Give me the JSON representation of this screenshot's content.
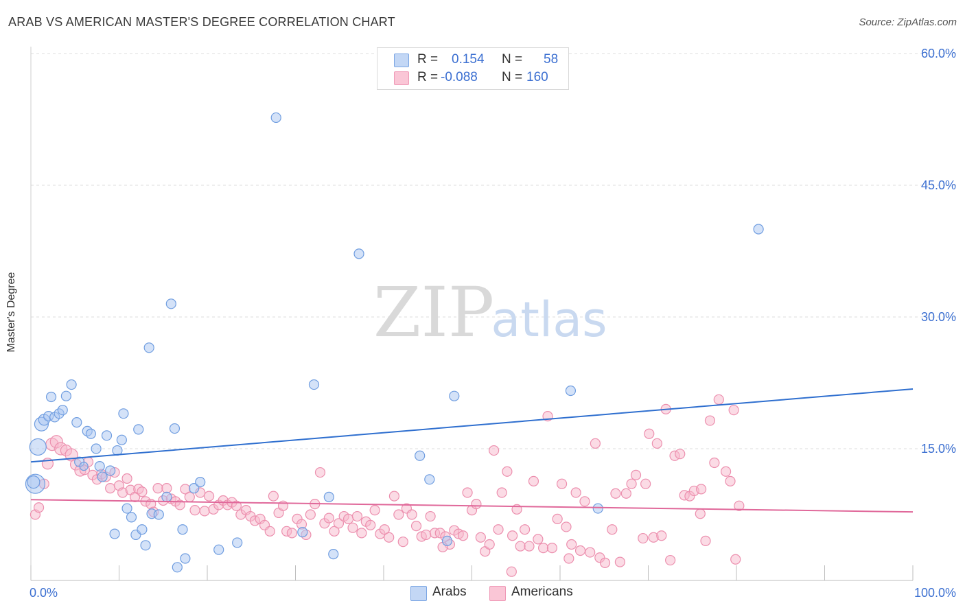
{
  "title": "ARAB VS AMERICAN MASTER'S DEGREE CORRELATION CHART",
  "source": "Source: ZipAtlas.com",
  "watermark": {
    "zip": "ZIP",
    "atlas": "atlas"
  },
  "legend": {
    "rows": [
      {
        "r_label": "R =",
        "r_value": "0.154",
        "n_label": "N =",
        "n_value": "58"
      },
      {
        "r_label": "R =",
        "r_value": "-0.088",
        "n_label": "N =",
        "n_value": "160"
      }
    ]
  },
  "bottom_legend": {
    "arabs": "Arabs",
    "americans": "Americans"
  },
  "colors": {
    "arabs_fill": "#a9c6f2",
    "arabs_stroke": "#6f9de0",
    "arabs_line": "#2f6fcf",
    "americans_fill": "#f7b8cb",
    "americans_stroke": "#ec8fae",
    "americans_line": "#e0689a",
    "axis_label": "#3b6fd1",
    "grid": "#dcdcdc"
  },
  "chart_data": {
    "type": "scatter",
    "title": "ARAB VS AMERICAN MASTER'S DEGREE CORRELATION CHART",
    "xlabel": "",
    "ylabel": "Master's Degree",
    "xlim": [
      0,
      100
    ],
    "ylim": [
      0,
      62
    ],
    "x_tick_labels": [
      "0.0%",
      "100.0%"
    ],
    "y_ticks": [
      15,
      30,
      45,
      60
    ],
    "y_tick_labels": [
      "15.0%",
      "30.0%",
      "45.0%",
      "60.0%"
    ],
    "grid": true,
    "legend_position": "top-center",
    "series": [
      {
        "name": "Arabs",
        "trend": {
          "x": [
            0,
            100
          ],
          "y": [
            13.5,
            21.8
          ]
        },
        "points": [
          [
            0.5,
            11.0,
            14
          ],
          [
            0.8,
            15.2,
            12
          ],
          [
            1.2,
            17.8,
            10
          ],
          [
            1.5,
            18.3,
            8
          ],
          [
            2.0,
            18.7,
            7
          ],
          [
            2.3,
            20.9,
            7
          ],
          [
            2.7,
            18.6,
            7
          ],
          [
            3.2,
            19.0,
            7
          ],
          [
            3.6,
            19.4,
            7
          ],
          [
            4.0,
            21.0,
            7
          ],
          [
            4.6,
            22.3,
            7
          ],
          [
            5.2,
            18.0,
            7
          ],
          [
            5.5,
            13.5,
            7
          ],
          [
            6.0,
            13.0,
            6
          ],
          [
            6.4,
            17.0,
            7
          ],
          [
            6.8,
            16.7,
            7
          ],
          [
            7.4,
            15.0,
            7
          ],
          [
            7.8,
            13.0,
            7
          ],
          [
            8.1,
            11.8,
            7
          ],
          [
            8.6,
            16.5,
            7
          ],
          [
            9.0,
            12.5,
            7
          ],
          [
            9.5,
            5.3,
            7
          ],
          [
            9.8,
            14.8,
            7
          ],
          [
            10.3,
            16.0,
            7
          ],
          [
            10.5,
            19.0,
            7
          ],
          [
            10.9,
            8.2,
            7
          ],
          [
            11.4,
            7.2,
            7
          ],
          [
            11.9,
            5.2,
            7
          ],
          [
            12.2,
            17.2,
            7
          ],
          [
            12.6,
            5.8,
            7
          ],
          [
            13.0,
            4.0,
            7
          ],
          [
            13.4,
            26.5,
            7
          ],
          [
            13.7,
            7.6,
            7
          ],
          [
            14.5,
            7.5,
            7
          ],
          [
            15.4,
            9.5,
            7
          ],
          [
            15.9,
            31.5,
            7
          ],
          [
            16.3,
            17.3,
            7
          ],
          [
            16.6,
            1.5,
            7
          ],
          [
            17.2,
            5.8,
            7
          ],
          [
            17.5,
            2.5,
            7
          ],
          [
            18.5,
            10.5,
            7
          ],
          [
            19.2,
            11.2,
            7
          ],
          [
            21.3,
            3.5,
            7
          ],
          [
            23.4,
            4.3,
            7
          ],
          [
            27.8,
            52.7,
            7
          ],
          [
            30.8,
            5.5,
            7
          ],
          [
            32.1,
            22.3,
            7
          ],
          [
            33.8,
            9.5,
            7
          ],
          [
            34.3,
            3.0,
            7
          ],
          [
            37.2,
            37.2,
            7
          ],
          [
            44.1,
            14.2,
            7
          ],
          [
            45.2,
            11.5,
            7
          ],
          [
            47.2,
            4.5,
            7
          ],
          [
            48.0,
            21.0,
            7
          ],
          [
            61.2,
            21.6,
            7
          ],
          [
            64.3,
            8.2,
            7
          ],
          [
            82.5,
            40.0,
            7
          ],
          [
            0.3,
            11.2,
            9
          ]
        ]
      },
      {
        "name": "Americans",
        "trend": {
          "x": [
            0,
            100
          ],
          "y": [
            9.2,
            7.8
          ]
        },
        "points": [
          [
            0.5,
            7.5,
            7
          ],
          [
            0.9,
            8.3,
            7
          ],
          [
            1.5,
            11.0,
            7
          ],
          [
            1.9,
            13.3,
            8
          ],
          [
            2.4,
            15.5,
            9
          ],
          [
            2.9,
            15.8,
            9
          ],
          [
            3.4,
            15.0,
            9
          ],
          [
            4.0,
            14.8,
            8
          ],
          [
            4.6,
            14.3,
            9
          ],
          [
            5.1,
            13.2,
            8
          ],
          [
            5.6,
            12.5,
            8
          ],
          [
            6.1,
            12.6,
            7
          ],
          [
            6.5,
            13.5,
            7
          ],
          [
            7.0,
            12.0,
            7
          ],
          [
            7.5,
            11.5,
            7
          ],
          [
            8.0,
            12.1,
            7
          ],
          [
            8.5,
            11.8,
            7
          ],
          [
            9.0,
            10.5,
            7
          ],
          [
            9.5,
            12.3,
            7
          ],
          [
            10.0,
            10.8,
            7
          ],
          [
            10.4,
            10.0,
            7
          ],
          [
            10.9,
            11.6,
            7
          ],
          [
            11.3,
            10.3,
            7
          ],
          [
            11.8,
            9.5,
            7
          ],
          [
            12.2,
            10.4,
            7
          ],
          [
            12.6,
            10.1,
            7
          ],
          [
            13.0,
            9.0,
            7
          ],
          [
            13.6,
            8.7,
            7
          ],
          [
            13.9,
            7.8,
            7
          ],
          [
            14.4,
            10.5,
            7
          ],
          [
            15.0,
            9.1,
            7
          ],
          [
            15.4,
            10.5,
            7
          ],
          [
            15.9,
            9.3,
            7
          ],
          [
            16.4,
            9.0,
            7
          ],
          [
            16.9,
            8.6,
            7
          ],
          [
            17.5,
            10.4,
            7
          ],
          [
            18.0,
            9.5,
            7
          ],
          [
            18.6,
            8.0,
            7
          ],
          [
            19.2,
            10.0,
            7
          ],
          [
            19.7,
            7.9,
            7
          ],
          [
            20.2,
            9.6,
            7
          ],
          [
            20.7,
            8.1,
            7
          ],
          [
            21.3,
            8.6,
            7
          ],
          [
            21.8,
            9.1,
            7
          ],
          [
            22.3,
            8.6,
            7
          ],
          [
            22.8,
            8.9,
            7
          ],
          [
            23.3,
            8.5,
            7
          ],
          [
            23.8,
            7.5,
            7
          ],
          [
            24.4,
            8.0,
            7
          ],
          [
            24.9,
            7.3,
            7
          ],
          [
            25.4,
            6.8,
            7
          ],
          [
            26.0,
            7.0,
            7
          ],
          [
            26.5,
            6.3,
            7
          ],
          [
            27.1,
            5.6,
            7
          ],
          [
            27.5,
            9.6,
            7
          ],
          [
            28.1,
            7.7,
            7
          ],
          [
            28.6,
            8.5,
            7
          ],
          [
            29.0,
            5.6,
            7
          ],
          [
            29.6,
            5.4,
            7
          ],
          [
            30.2,
            7.0,
            7
          ],
          [
            30.7,
            6.4,
            7
          ],
          [
            31.2,
            5.2,
            7
          ],
          [
            31.7,
            7.5,
            7
          ],
          [
            32.2,
            8.7,
            7
          ],
          [
            32.8,
            12.3,
            7
          ],
          [
            33.3,
            6.5,
            7
          ],
          [
            33.8,
            7.1,
            7
          ],
          [
            34.4,
            5.6,
            7
          ],
          [
            34.9,
            6.5,
            7
          ],
          [
            35.5,
            7.3,
            7
          ],
          [
            36.0,
            7.0,
            7
          ],
          [
            36.5,
            6.0,
            7
          ],
          [
            37.0,
            7.3,
            7
          ],
          [
            37.5,
            5.4,
            7
          ],
          [
            38.0,
            6.7,
            7
          ],
          [
            38.5,
            6.3,
            7
          ],
          [
            39.0,
            8.0,
            7
          ],
          [
            39.6,
            5.3,
            7
          ],
          [
            40.1,
            5.8,
            7
          ],
          [
            40.6,
            4.9,
            7
          ],
          [
            41.2,
            9.6,
            7
          ],
          [
            41.7,
            7.5,
            7
          ],
          [
            42.2,
            4.4,
            7
          ],
          [
            42.6,
            8.2,
            7
          ],
          [
            43.2,
            7.5,
            7
          ],
          [
            43.7,
            6.2,
            7
          ],
          [
            44.3,
            5.0,
            7
          ],
          [
            44.8,
            5.2,
            7
          ],
          [
            45.3,
            7.3,
            7
          ],
          [
            45.8,
            5.4,
            7
          ],
          [
            46.4,
            5.4,
            7
          ],
          [
            47.0,
            5.0,
            7
          ],
          [
            47.5,
            4.1,
            7
          ],
          [
            48.0,
            5.7,
            7
          ],
          [
            48.5,
            5.3,
            7
          ],
          [
            49.0,
            5.1,
            7
          ],
          [
            49.5,
            10.0,
            7
          ],
          [
            50.0,
            8.0,
            7
          ],
          [
            50.5,
            8.7,
            7
          ],
          [
            51.0,
            4.9,
            7
          ],
          [
            51.5,
            3.3,
            7
          ],
          [
            52.0,
            4.1,
            7
          ],
          [
            52.5,
            14.8,
            7
          ],
          [
            53.0,
            5.8,
            7
          ],
          [
            53.4,
            10.0,
            7
          ],
          [
            54.0,
            12.4,
            7
          ],
          [
            54.6,
            5.1,
            7
          ],
          [
            55.1,
            8.1,
            7
          ],
          [
            55.5,
            3.9,
            7
          ],
          [
            56.0,
            5.8,
            7
          ],
          [
            56.5,
            3.9,
            7
          ],
          [
            57.0,
            11.3,
            7
          ],
          [
            57.5,
            4.7,
            7
          ],
          [
            58.1,
            3.7,
            7
          ],
          [
            58.6,
            18.7,
            7
          ],
          [
            59.1,
            3.7,
            7
          ],
          [
            59.7,
            7.0,
            7
          ],
          [
            60.2,
            11.0,
            7
          ],
          [
            60.7,
            6.1,
            7
          ],
          [
            61.3,
            4.1,
            7
          ],
          [
            61.8,
            10.0,
            7
          ],
          [
            62.3,
            3.4,
            7
          ],
          [
            62.8,
            9.0,
            7
          ],
          [
            63.4,
            3.2,
            7
          ],
          [
            64.0,
            15.6,
            7
          ],
          [
            64.5,
            2.6,
            7
          ],
          [
            65.1,
            2.0,
            7
          ],
          [
            65.9,
            5.8,
            7
          ],
          [
            66.3,
            9.9,
            7
          ],
          [
            66.8,
            2.1,
            7
          ],
          [
            67.5,
            9.9,
            7
          ],
          [
            68.1,
            11.0,
            7
          ],
          [
            68.6,
            12.0,
            7
          ],
          [
            69.4,
            4.8,
            7
          ],
          [
            70.1,
            16.7,
            7
          ],
          [
            70.6,
            4.9,
            7
          ],
          [
            71.0,
            15.6,
            7
          ],
          [
            71.5,
            5.1,
            7
          ],
          [
            72.0,
            19.5,
            7
          ],
          [
            72.5,
            2.3,
            7
          ],
          [
            73.0,
            14.2,
            7
          ],
          [
            73.6,
            14.4,
            7
          ],
          [
            74.1,
            9.7,
            7
          ],
          [
            74.7,
            9.6,
            7
          ],
          [
            75.2,
            10.2,
            7
          ],
          [
            75.9,
            7.6,
            7
          ],
          [
            76.5,
            4.5,
            7
          ],
          [
            77.0,
            18.2,
            7
          ],
          [
            77.5,
            13.4,
            7
          ],
          [
            78.0,
            20.6,
            7
          ],
          [
            78.8,
            12.4,
            7
          ],
          [
            79.3,
            11.3,
            7
          ],
          [
            79.7,
            19.4,
            7
          ],
          [
            80.3,
            8.5,
            7
          ],
          [
            54.5,
            1.0,
            7
          ],
          [
            61.0,
            2.5,
            7
          ],
          [
            69.7,
            11.0,
            7
          ],
          [
            76.0,
            10.4,
            7
          ],
          [
            46.7,
            3.8,
            7
          ],
          [
            79.9,
            2.4,
            7
          ]
        ]
      }
    ]
  }
}
